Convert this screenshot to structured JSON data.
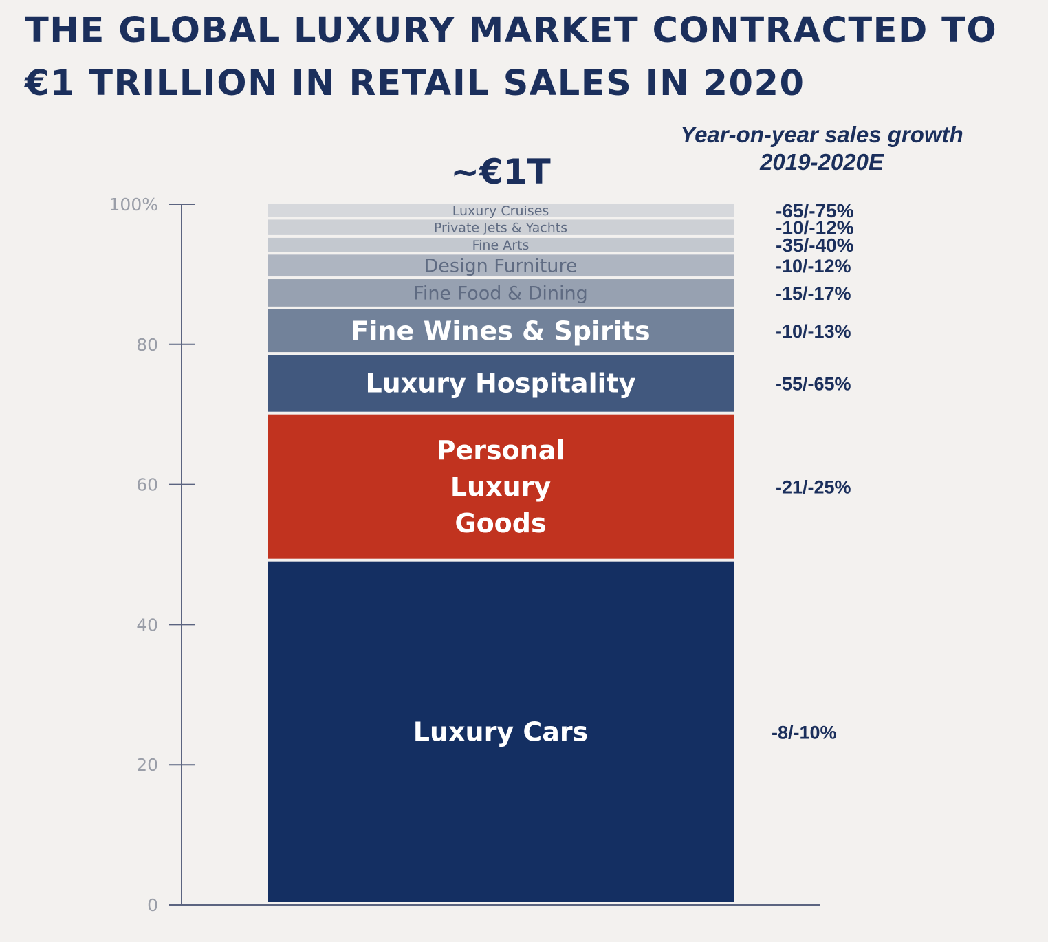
{
  "title": {
    "line1": "THE GLOBAL LUXURY MARKET CONTRACTED TO",
    "line2": "€1 TRILLION IN RETAIL SALES IN 2020"
  },
  "growth_heading": {
    "line1": "Year-on-year sales growth",
    "line2": "2019-2020E"
  },
  "total_label": "~€1T",
  "colors": {
    "background": "#f3f1ef",
    "title": "#1b2f5c",
    "axis": "#5b6480",
    "tick_label": "#9a9ea8",
    "growth_text": "#1b2f5c"
  },
  "chart_data": {
    "type": "bar",
    "stacked": true,
    "ylim": [
      0,
      100
    ],
    "ytick_labels": [
      "0",
      "20",
      "40",
      "60",
      "80",
      "100%"
    ],
    "yticks": [
      0,
      20,
      40,
      60,
      80,
      100
    ],
    "categories": [
      ""
    ],
    "segments": [
      {
        "name": "Luxury Cars",
        "lines": [
          "Luxury Cars"
        ],
        "value": 49,
        "growth": "-8/-10%",
        "color": "#142f62",
        "text_color": "#ffffff",
        "size": "large"
      },
      {
        "name": "Personal Luxury Goods",
        "lines": [
          "Personal",
          "Luxury",
          "Goods"
        ],
        "value": 21,
        "growth": "-21/-25%",
        "color": "#c1331f",
        "text_color": "#ffffff",
        "size": "large"
      },
      {
        "name": "Luxury Hospitality",
        "lines": [
          "Luxury Hospitality"
        ],
        "value": 8.5,
        "growth": "-55/-65%",
        "color": "#41587e",
        "text_color": "#ffffff",
        "size": "large"
      },
      {
        "name": "Fine Wines & Spirits",
        "lines": [
          "Fine Wines & Spirits"
        ],
        "value": 6.5,
        "growth": "-10/-13%",
        "color": "#72829a",
        "text_color": "#ffffff",
        "size": "large"
      },
      {
        "name": "Fine Food & Dining",
        "lines": [
          "Fine Food & Dining"
        ],
        "value": 4.3,
        "growth": "-15/-17%",
        "color": "#97a1b1",
        "text_color": "#5f6b82",
        "size": "medium"
      },
      {
        "name": "Design Furniture",
        "lines": [
          "Design Furniture"
        ],
        "value": 3.5,
        "growth": "-10/-12%",
        "color": "#aeb5c1",
        "text_color": "#5f6b82",
        "size": "medium"
      },
      {
        "name": "Fine Arts",
        "lines": [
          "Fine Arts"
        ],
        "value": 2.4,
        "growth": "-35/-40%",
        "color": "#c3c8cf",
        "text_color": "#5f6b82",
        "size": "small"
      },
      {
        "name": "Private Jets & Yachts",
        "lines": [
          "Private Jets & Yachts"
        ],
        "value": 2.6,
        "growth": "-10/-12%",
        "color": "#cdd0d5",
        "text_color": "#5f6b82",
        "size": "small"
      },
      {
        "name": "Luxury Cruises",
        "lines": [
          "Luxury Cruises"
        ],
        "value": 2.2,
        "growth": "-65/-75%",
        "color": "#d6d8dc",
        "text_color": "#5f6b82",
        "size": "small"
      }
    ]
  }
}
